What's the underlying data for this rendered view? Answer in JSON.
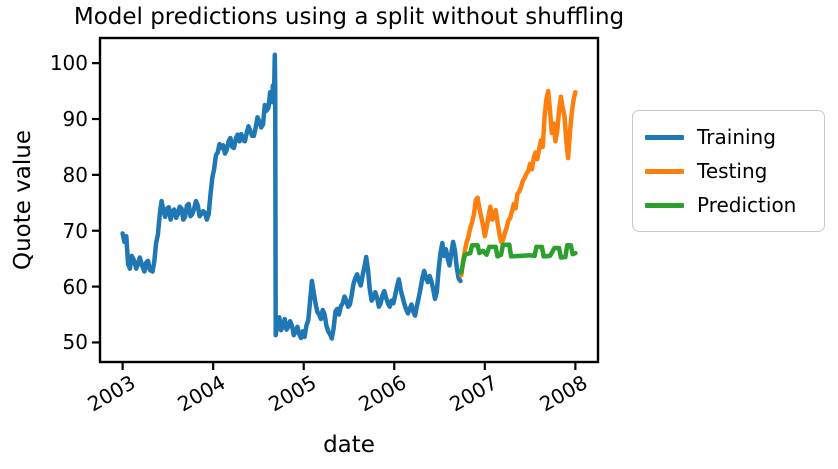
{
  "chart_data": {
    "type": "line",
    "title": "Model predictions using a split without shuffling",
    "xlabel": "date",
    "ylabel": "Quote value",
    "xlim": [
      2002.75,
      2008.25
    ],
    "ylim": [
      46.5,
      104.5
    ],
    "x_ticks": [
      2003,
      2004,
      2005,
      2006,
      2007,
      2008
    ],
    "y_ticks": [
      50,
      60,
      70,
      80,
      90,
      100
    ],
    "grid": false,
    "legend_position": "outside-right",
    "x_tick_rotation_deg": 30,
    "series": [
      {
        "name": "Training",
        "color": "#1f77b4",
        "points": [
          [
            2003.0,
            69.5
          ],
          [
            2003.02,
            68.0
          ],
          [
            2003.04,
            69.0
          ],
          [
            2003.06,
            64.0
          ],
          [
            2003.08,
            63.2
          ],
          [
            2003.1,
            65.5
          ],
          [
            2003.13,
            64.5
          ],
          [
            2003.15,
            63.2
          ],
          [
            2003.17,
            64.0
          ],
          [
            2003.19,
            65.2
          ],
          [
            2003.22,
            63.5
          ],
          [
            2003.24,
            62.7
          ],
          [
            2003.26,
            64.3
          ],
          [
            2003.28,
            64.6
          ],
          [
            2003.3,
            63.0
          ],
          [
            2003.33,
            62.7
          ],
          [
            2003.35,
            64.5
          ],
          [
            2003.37,
            67.8
          ],
          [
            2003.39,
            69.3
          ],
          [
            2003.41,
            73.0
          ],
          [
            2003.43,
            75.3
          ],
          [
            2003.45,
            73.5
          ],
          [
            2003.47,
            72.5
          ],
          [
            2003.49,
            74.0
          ],
          [
            2003.51,
            74.2
          ],
          [
            2003.53,
            72.0
          ],
          [
            2003.55,
            73.5
          ],
          [
            2003.57,
            73.8
          ],
          [
            2003.59,
            72.3
          ],
          [
            2003.61,
            73.0
          ],
          [
            2003.63,
            74.3
          ],
          [
            2003.65,
            74.0
          ],
          [
            2003.67,
            72.0
          ],
          [
            2003.69,
            72.5
          ],
          [
            2003.71,
            74.5
          ],
          [
            2003.73,
            74.8
          ],
          [
            2003.75,
            72.6
          ],
          [
            2003.77,
            73.0
          ],
          [
            2003.79,
            74.0
          ],
          [
            2003.81,
            75.3
          ],
          [
            2003.83,
            74.5
          ],
          [
            2003.85,
            72.6
          ],
          [
            2003.87,
            73.0
          ],
          [
            2003.89,
            73.5
          ],
          [
            2003.91,
            73.2
          ],
          [
            2003.93,
            72.0
          ],
          [
            2003.95,
            73.0
          ],
          [
            2003.97,
            76.5
          ],
          [
            2003.99,
            79.5
          ],
          [
            2004.01,
            81.0
          ],
          [
            2004.03,
            83.5
          ],
          [
            2004.05,
            84.0
          ],
          [
            2004.07,
            85.5
          ],
          [
            2004.09,
            84.8
          ],
          [
            2004.11,
            85.3
          ],
          [
            2004.13,
            83.8
          ],
          [
            2004.15,
            84.5
          ],
          [
            2004.17,
            86.0
          ],
          [
            2004.19,
            86.6
          ],
          [
            2004.21,
            85.0
          ],
          [
            2004.23,
            84.8
          ],
          [
            2004.25,
            86.5
          ],
          [
            2004.27,
            87.2
          ],
          [
            2004.29,
            86.0
          ],
          [
            2004.31,
            87.3
          ],
          [
            2004.33,
            86.2
          ],
          [
            2004.35,
            86.0
          ],
          [
            2004.37,
            87.5
          ],
          [
            2004.39,
            88.7
          ],
          [
            2004.41,
            87.8
          ],
          [
            2004.43,
            87.0
          ],
          [
            2004.45,
            87.0
          ],
          [
            2004.47,
            88.5
          ],
          [
            2004.49,
            90.3
          ],
          [
            2004.51,
            89.5
          ],
          [
            2004.53,
            88.5
          ],
          [
            2004.55,
            89.0
          ],
          [
            2004.57,
            92.5
          ],
          [
            2004.59,
            91.5
          ],
          [
            2004.61,
            92.0
          ],
          [
            2004.63,
            94.8
          ],
          [
            2004.65,
            93.0
          ],
          [
            2004.66,
            96.0
          ],
          [
            2004.67,
            93.5
          ],
          [
            2004.675,
            97.0
          ],
          [
            2004.68,
            101.5
          ],
          [
            2004.685,
            96.0
          ],
          [
            2004.69,
            51.3
          ],
          [
            2004.71,
            53.3
          ],
          [
            2004.73,
            54.5
          ],
          [
            2004.75,
            52.2
          ],
          [
            2004.77,
            53.0
          ],
          [
            2004.79,
            54.2
          ],
          [
            2004.81,
            52.3
          ],
          [
            2004.83,
            52.8
          ],
          [
            2004.85,
            53.8
          ],
          [
            2004.87,
            53.0
          ],
          [
            2004.89,
            51.3
          ],
          [
            2004.91,
            52.0
          ],
          [
            2004.93,
            52.8
          ],
          [
            2004.95,
            51.5
          ],
          [
            2004.97,
            50.8
          ],
          [
            2004.99,
            52.0
          ],
          [
            2005.01,
            51.0
          ],
          [
            2005.03,
            53.0
          ],
          [
            2005.05,
            54.0
          ],
          [
            2005.07,
            57.5
          ],
          [
            2005.09,
            61.0
          ],
          [
            2005.11,
            59.0
          ],
          [
            2005.13,
            57.0
          ],
          [
            2005.15,
            55.5
          ],
          [
            2005.17,
            55.0
          ],
          [
            2005.19,
            54.2
          ],
          [
            2005.21,
            55.8
          ],
          [
            2005.23,
            55.0
          ],
          [
            2005.25,
            53.0
          ],
          [
            2005.27,
            52.0
          ],
          [
            2005.29,
            51.5
          ],
          [
            2005.31,
            50.7
          ],
          [
            2005.33,
            52.5
          ],
          [
            2005.35,
            55.5
          ],
          [
            2005.37,
            56.0
          ],
          [
            2005.39,
            55.0
          ],
          [
            2005.41,
            56.5
          ],
          [
            2005.43,
            57.0
          ],
          [
            2005.45,
            58.2
          ],
          [
            2005.47,
            57.5
          ],
          [
            2005.49,
            56.4
          ],
          [
            2005.51,
            56.8
          ],
          [
            2005.53,
            58.5
          ],
          [
            2005.55,
            60.5
          ],
          [
            2005.57,
            61.5
          ],
          [
            2005.59,
            62.2
          ],
          [
            2005.61,
            61.0
          ],
          [
            2005.63,
            60.2
          ],
          [
            2005.65,
            62.0
          ],
          [
            2005.67,
            63.5
          ],
          [
            2005.69,
            65.3
          ],
          [
            2005.71,
            63.0
          ],
          [
            2005.73,
            59.5
          ],
          [
            2005.75,
            57.5
          ],
          [
            2005.77,
            58.0
          ],
          [
            2005.79,
            59.0
          ],
          [
            2005.81,
            58.0
          ],
          [
            2005.83,
            56.4
          ],
          [
            2005.85,
            57.0
          ],
          [
            2005.87,
            58.5
          ],
          [
            2005.89,
            59.2
          ],
          [
            2005.91,
            58.0
          ],
          [
            2005.93,
            57.0
          ],
          [
            2005.95,
            56.4
          ],
          [
            2005.97,
            57.5
          ],
          [
            2005.99,
            57.0
          ],
          [
            2006.01,
            58.5
          ],
          [
            2006.03,
            60.0
          ],
          [
            2006.05,
            61.3
          ],
          [
            2006.07,
            59.5
          ],
          [
            2006.09,
            58.2
          ],
          [
            2006.11,
            57.0
          ],
          [
            2006.13,
            56.0
          ],
          [
            2006.15,
            55.2
          ],
          [
            2006.17,
            56.0
          ],
          [
            2006.19,
            56.8
          ],
          [
            2006.21,
            55.5
          ],
          [
            2006.23,
            54.8
          ],
          [
            2006.25,
            56.5
          ],
          [
            2006.27,
            58.0
          ],
          [
            2006.29,
            59.6
          ],
          [
            2006.31,
            61.5
          ],
          [
            2006.33,
            62.8
          ],
          [
            2006.35,
            61.5
          ],
          [
            2006.37,
            60.8
          ],
          [
            2006.39,
            61.9
          ],
          [
            2006.41,
            61.0
          ],
          [
            2006.43,
            59.5
          ],
          [
            2006.45,
            57.8
          ],
          [
            2006.47,
            59.0
          ],
          [
            2006.49,
            63.0
          ],
          [
            2006.51,
            66.0
          ],
          [
            2006.53,
            67.8
          ],
          [
            2006.55,
            65.5
          ],
          [
            2006.57,
            66.7
          ],
          [
            2006.59,
            65.0
          ],
          [
            2006.61,
            63.8
          ],
          [
            2006.63,
            66.0
          ],
          [
            2006.65,
            68.0
          ],
          [
            2006.67,
            66.5
          ],
          [
            2006.69,
            63.5
          ],
          [
            2006.71,
            61.5
          ],
          [
            2006.73,
            61.0
          ]
        ]
      },
      {
        "name": "Testing",
        "color": "#ff7f0e",
        "points": [
          [
            2006.74,
            62.0
          ],
          [
            2006.76,
            64.5
          ],
          [
            2006.78,
            66.5
          ],
          [
            2006.8,
            68.0
          ],
          [
            2006.82,
            69.0
          ],
          [
            2006.84,
            70.5
          ],
          [
            2006.86,
            71.5
          ],
          [
            2006.88,
            73.0
          ],
          [
            2006.9,
            75.5
          ],
          [
            2006.92,
            75.9
          ],
          [
            2006.94,
            74.0
          ],
          [
            2006.96,
            72.5
          ],
          [
            2006.98,
            71.0
          ],
          [
            2007.0,
            69.0
          ],
          [
            2007.02,
            70.5
          ],
          [
            2007.04,
            72.5
          ],
          [
            2007.06,
            74.3
          ],
          [
            2007.08,
            72.0
          ],
          [
            2007.1,
            72.5
          ],
          [
            2007.12,
            73.7
          ],
          [
            2007.14,
            71.5
          ],
          [
            2007.16,
            69.5
          ],
          [
            2007.18,
            68.0
          ],
          [
            2007.2,
            68.3
          ],
          [
            2007.22,
            69.5
          ],
          [
            2007.24,
            70.5
          ],
          [
            2007.26,
            71.8
          ],
          [
            2007.28,
            72.3
          ],
          [
            2007.3,
            73.5
          ],
          [
            2007.32,
            74.8
          ],
          [
            2007.34,
            74.0
          ],
          [
            2007.36,
            76.6
          ],
          [
            2007.38,
            77.0
          ],
          [
            2007.4,
            77.8
          ],
          [
            2007.42,
            78.9
          ],
          [
            2007.44,
            79.5
          ],
          [
            2007.46,
            80.2
          ],
          [
            2007.48,
            80.7
          ],
          [
            2007.5,
            82.0
          ],
          [
            2007.52,
            81.0
          ],
          [
            2007.54,
            83.0
          ],
          [
            2007.56,
            84.0
          ],
          [
            2007.58,
            82.8
          ],
          [
            2007.6,
            84.5
          ],
          [
            2007.62,
            86.2
          ],
          [
            2007.64,
            85.0
          ],
          [
            2007.66,
            90.5
          ],
          [
            2007.68,
            93.5
          ],
          [
            2007.7,
            95.0
          ],
          [
            2007.72,
            91.5
          ],
          [
            2007.74,
            87.5
          ],
          [
            2007.76,
            89.2
          ],
          [
            2007.78,
            86.0
          ],
          [
            2007.8,
            88.0
          ],
          [
            2007.82,
            91.5
          ],
          [
            2007.84,
            94.0
          ],
          [
            2007.86,
            92.0
          ],
          [
            2007.88,
            90.5
          ],
          [
            2007.9,
            86.0
          ],
          [
            2007.92,
            83.0
          ],
          [
            2007.94,
            87.5
          ],
          [
            2007.96,
            91.0
          ],
          [
            2007.98,
            93.5
          ],
          [
            2008.0,
            94.8
          ]
        ]
      },
      {
        "name": "Prediction",
        "color": "#2ca02c",
        "points": [
          [
            2006.74,
            62.5
          ],
          [
            2006.76,
            64.3
          ],
          [
            2006.78,
            65.7
          ],
          [
            2006.82,
            65.9
          ],
          [
            2006.84,
            66.0
          ],
          [
            2006.86,
            67.4
          ],
          [
            2006.92,
            67.4
          ],
          [
            2006.94,
            66.0
          ],
          [
            2006.98,
            66.4
          ],
          [
            2007.02,
            65.7
          ],
          [
            2007.05,
            67.1
          ],
          [
            2007.12,
            67.1
          ],
          [
            2007.14,
            65.4
          ],
          [
            2007.18,
            65.7
          ],
          [
            2007.2,
            67.5
          ],
          [
            2007.27,
            67.5
          ],
          [
            2007.29,
            65.4
          ],
          [
            2007.4,
            65.5
          ],
          [
            2007.5,
            65.6
          ],
          [
            2007.55,
            65.5
          ],
          [
            2007.57,
            67.1
          ],
          [
            2007.63,
            67.1
          ],
          [
            2007.65,
            65.4
          ],
          [
            2007.72,
            65.5
          ],
          [
            2007.77,
            66.9
          ],
          [
            2007.82,
            66.9
          ],
          [
            2007.84,
            65.2
          ],
          [
            2007.89,
            65.3
          ],
          [
            2007.91,
            67.4
          ],
          [
            2007.95,
            67.4
          ],
          [
            2007.97,
            65.8
          ],
          [
            2008.0,
            66.0
          ]
        ]
      }
    ]
  }
}
